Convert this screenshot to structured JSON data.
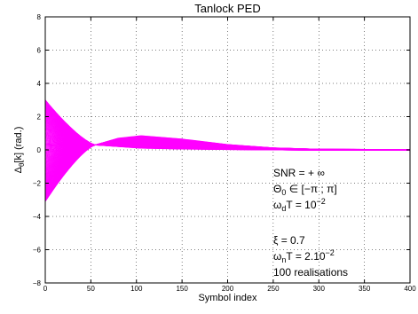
{
  "chart_data": {
    "type": "line",
    "title": "Tanlock PED",
    "xlabel": "Symbol index",
    "ylabel": "Δθ[k] (rad.)",
    "ylabel_parts": {
      "main": "Δ",
      "sub": "θ",
      "rest": "[k] (rad.)"
    },
    "xlim": [
      0,
      400
    ],
    "ylim": [
      -8,
      8
    ],
    "x_ticks": [
      "0",
      "50",
      "100",
      "150",
      "200",
      "250",
      "300",
      "350",
      "400"
    ],
    "y_ticks": [
      "−8",
      "−6",
      "−4",
      "−2",
      "0",
      "2",
      "4",
      "6",
      "8"
    ],
    "grid": true,
    "line_color": "#ff00ff",
    "num_trajectories": 100,
    "initial_error_range": [
      -3.1,
      3.0
    ],
    "convergence_point": {
      "x": 55,
      "y": 0.3
    },
    "overshoot_envelope": [
      {
        "x": 55,
        "min": 0.3,
        "max": 0.3
      },
      {
        "x": 80,
        "min": 0.2,
        "max": 0.7
      },
      {
        "x": 105,
        "min": 0.1,
        "max": 0.85
      },
      {
        "x": 150,
        "min": 0.05,
        "max": 0.65
      },
      {
        "x": 200,
        "min": 0.02,
        "max": 0.32
      },
      {
        "x": 250,
        "min": 0.0,
        "max": 0.12
      },
      {
        "x": 300,
        "min": -0.02,
        "max": 0.04
      },
      {
        "x": 400,
        "min": -0.02,
        "max": 0.02
      }
    ],
    "annotations": {
      "line1": {
        "main": "SNR = + ∞"
      },
      "line2": {
        "main": "Θ",
        "sub": "0",
        "rest": " ∈ [−π ; π]"
      },
      "line3": {
        "main": "ω",
        "sub": "d",
        "rest": "T = 10",
        "sup": "−2"
      },
      "line4": {
        "main": "ξ = 0.7"
      },
      "line5": {
        "main": "ω",
        "sub": "n",
        "rest": "T = 2.10",
        "sup": "−2"
      },
      "line6": {
        "main": "100 realisations"
      }
    }
  }
}
